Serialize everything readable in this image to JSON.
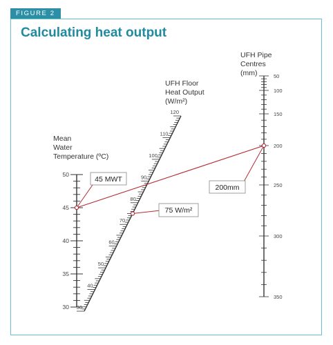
{
  "figure_label": "FIGURE 2",
  "title": "Calculating heat output",
  "colors": {
    "accent": "#2d8fa6",
    "frame": "#6bbdd0",
    "construction_line": "#b52a35",
    "scale_ink": "#333333"
  },
  "scales": {
    "mwt": {
      "title_lines": [
        "Mean",
        "Water",
        "Temperature (ºC)"
      ],
      "min": 30,
      "max": 50,
      "major_labels": [
        "30",
        "35",
        "40",
        "45",
        "50"
      ]
    },
    "output": {
      "title_lines": [
        "UFH Floor",
        "Heat Output",
        "(W/m²)"
      ],
      "min": 30,
      "max": 120,
      "major_labels": [
        "30",
        "40",
        "50",
        "60",
        "70",
        "80",
        "90",
        "100",
        "110",
        "120"
      ]
    },
    "pipe": {
      "title_lines": [
        "UFH Pipe",
        "Centres",
        "(mm)"
      ],
      "labeled_values": [
        50,
        100,
        150,
        200,
        250,
        300,
        350
      ],
      "labels": [
        "50",
        "100",
        "150",
        "200",
        "250",
        "300",
        "350"
      ]
    }
  },
  "example": {
    "mwt_value": 45,
    "pipe_value": 200,
    "output_value": 75,
    "mwt_label": "45 MWT",
    "pipe_label": "200mm",
    "output_label": "75 W/m²"
  }
}
